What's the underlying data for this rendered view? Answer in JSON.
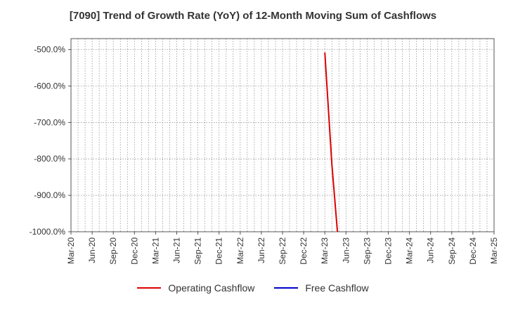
{
  "title": "[7090]  Trend of Growth Rate (YoY) of 12-Month Moving Sum of Cashflows",
  "chart_data": {
    "type": "line",
    "title": "[7090]  Trend of Growth Rate (YoY) of 12-Month Moving Sum of Cashflows",
    "x_tick_labels": [
      "Mar-20",
      "Jun-20",
      "Sep-20",
      "Dec-20",
      "Mar-21",
      "Jun-21",
      "Sep-21",
      "Dec-21",
      "Mar-22",
      "Jun-22",
      "Sep-22",
      "Dec-22",
      "Mar-23",
      "Jun-23",
      "Sep-23",
      "Dec-23",
      "Mar-24",
      "Jun-24",
      "Sep-24",
      "Dec-24",
      "Mar-25"
    ],
    "x_range": [
      "2020-03",
      "2025-03"
    ],
    "ylim": [
      -1000,
      -470
    ],
    "y_ticks": [
      -500,
      -600,
      -700,
      -800,
      -900,
      -1000
    ],
    "y_tick_labels": [
      "-500.0%",
      "-600.0%",
      "-700.0%",
      "-800.0%",
      "-900.0%",
      "-1000.0%"
    ],
    "grid": true,
    "legend_position": "bottom",
    "series": [
      {
        "name": "Operating Cashflow",
        "color": "#dd0000",
        "points": [
          [
            "2023-03",
            -508
          ],
          [
            "2023-04",
            -815
          ],
          [
            "2023-05",
            -1050
          ]
        ]
      },
      {
        "name": "Free Cashflow",
        "color": "#0000cc",
        "points": []
      }
    ]
  }
}
